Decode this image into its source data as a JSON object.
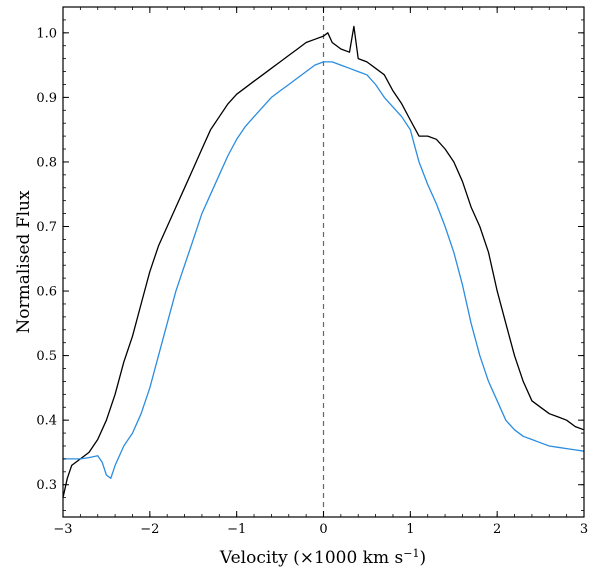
{
  "chart_data": {
    "type": "line",
    "xlabel": "Velocity (×1000 km s",
    "xlabel_sup": "−1",
    "xlabel_close": ")",
    "ylabel": "Normalised Flux",
    "xlim": [
      -3,
      3
    ],
    "ylim": [
      0.25,
      1.04
    ],
    "x_ticks": [
      -3,
      -2,
      -1,
      0,
      1,
      2,
      3
    ],
    "x_tick_labels": [
      "−3",
      "−2",
      "−1",
      "0",
      "1",
      "2",
      "3"
    ],
    "y_ticks": [
      0.3,
      0.4,
      0.5,
      0.6,
      0.7,
      0.8,
      0.9,
      1.0
    ],
    "y_tick_labels": [
      "0.3",
      "0.4",
      "0.5",
      "0.6",
      "0.7",
      "0.8",
      "0.9",
      "1.0"
    ],
    "grid": false,
    "reference_line": {
      "x": 0,
      "style": "dashed",
      "color": "#666666"
    },
    "series": [
      {
        "color": "#000000",
        "points": [
          [
            -3.0,
            0.28
          ],
          [
            -2.95,
            0.31
          ],
          [
            -2.9,
            0.33
          ],
          [
            -2.8,
            0.34
          ],
          [
            -2.7,
            0.35
          ],
          [
            -2.6,
            0.37
          ],
          [
            -2.5,
            0.4
          ],
          [
            -2.4,
            0.44
          ],
          [
            -2.3,
            0.49
          ],
          [
            -2.2,
            0.53
          ],
          [
            -2.1,
            0.58
          ],
          [
            -2.0,
            0.63
          ],
          [
            -1.9,
            0.67
          ],
          [
            -1.8,
            0.7
          ],
          [
            -1.7,
            0.73
          ],
          [
            -1.6,
            0.76
          ],
          [
            -1.5,
            0.79
          ],
          [
            -1.4,
            0.82
          ],
          [
            -1.3,
            0.85
          ],
          [
            -1.2,
            0.87
          ],
          [
            -1.1,
            0.89
          ],
          [
            -1.0,
            0.905
          ],
          [
            -0.9,
            0.915
          ],
          [
            -0.8,
            0.925
          ],
          [
            -0.7,
            0.935
          ],
          [
            -0.6,
            0.945
          ],
          [
            -0.5,
            0.955
          ],
          [
            -0.4,
            0.965
          ],
          [
            -0.3,
            0.975
          ],
          [
            -0.2,
            0.985
          ],
          [
            -0.1,
            0.99
          ],
          [
            0.0,
            0.995
          ],
          [
            0.05,
            1.0
          ],
          [
            0.1,
            0.985
          ],
          [
            0.2,
            0.975
          ],
          [
            0.3,
            0.97
          ],
          [
            0.35,
            1.01
          ],
          [
            0.4,
            0.96
          ],
          [
            0.5,
            0.955
          ],
          [
            0.6,
            0.945
          ],
          [
            0.7,
            0.935
          ],
          [
            0.8,
            0.91
          ],
          [
            0.9,
            0.89
          ],
          [
            1.0,
            0.865
          ],
          [
            1.1,
            0.84
          ],
          [
            1.2,
            0.84
          ],
          [
            1.3,
            0.835
          ],
          [
            1.4,
            0.82
          ],
          [
            1.5,
            0.8
          ],
          [
            1.6,
            0.77
          ],
          [
            1.7,
            0.73
          ],
          [
            1.8,
            0.7
          ],
          [
            1.9,
            0.66
          ],
          [
            2.0,
            0.6
          ],
          [
            2.1,
            0.55
          ],
          [
            2.2,
            0.5
          ],
          [
            2.3,
            0.46
          ],
          [
            2.4,
            0.43
          ],
          [
            2.5,
            0.42
          ],
          [
            2.6,
            0.41
          ],
          [
            2.7,
            0.405
          ],
          [
            2.8,
            0.4
          ],
          [
            2.9,
            0.39
          ],
          [
            3.0,
            0.385
          ]
        ]
      },
      {
        "color": "#2b8de0",
        "points": [
          [
            -3.0,
            0.34
          ],
          [
            -2.9,
            0.34
          ],
          [
            -2.8,
            0.34
          ],
          [
            -2.7,
            0.342
          ],
          [
            -2.6,
            0.345
          ],
          [
            -2.55,
            0.335
          ],
          [
            -2.5,
            0.315
          ],
          [
            -2.45,
            0.31
          ],
          [
            -2.4,
            0.33
          ],
          [
            -2.3,
            0.36
          ],
          [
            -2.2,
            0.38
          ],
          [
            -2.1,
            0.41
          ],
          [
            -2.0,
            0.45
          ],
          [
            -1.9,
            0.5
          ],
          [
            -1.8,
            0.55
          ],
          [
            -1.7,
            0.6
          ],
          [
            -1.6,
            0.64
          ],
          [
            -1.5,
            0.68
          ],
          [
            -1.4,
            0.72
          ],
          [
            -1.3,
            0.75
          ],
          [
            -1.2,
            0.78
          ],
          [
            -1.1,
            0.81
          ],
          [
            -1.0,
            0.835
          ],
          [
            -0.9,
            0.855
          ],
          [
            -0.8,
            0.87
          ],
          [
            -0.7,
            0.885
          ],
          [
            -0.6,
            0.9
          ],
          [
            -0.5,
            0.91
          ],
          [
            -0.4,
            0.92
          ],
          [
            -0.3,
            0.93
          ],
          [
            -0.2,
            0.94
          ],
          [
            -0.1,
            0.95
          ],
          [
            0.0,
            0.955
          ],
          [
            0.1,
            0.955
          ],
          [
            0.2,
            0.95
          ],
          [
            0.3,
            0.945
          ],
          [
            0.4,
            0.94
          ],
          [
            0.5,
            0.935
          ],
          [
            0.6,
            0.92
          ],
          [
            0.7,
            0.9
          ],
          [
            0.8,
            0.885
          ],
          [
            0.9,
            0.87
          ],
          [
            1.0,
            0.85
          ],
          [
            1.1,
            0.8
          ],
          [
            1.2,
            0.765
          ],
          [
            1.3,
            0.735
          ],
          [
            1.4,
            0.7
          ],
          [
            1.5,
            0.66
          ],
          [
            1.6,
            0.61
          ],
          [
            1.7,
            0.55
          ],
          [
            1.8,
            0.5
          ],
          [
            1.9,
            0.46
          ],
          [
            2.0,
            0.43
          ],
          [
            2.1,
            0.4
          ],
          [
            2.2,
            0.385
          ],
          [
            2.3,
            0.375
          ],
          [
            2.4,
            0.37
          ],
          [
            2.5,
            0.365
          ],
          [
            2.6,
            0.36
          ],
          [
            2.7,
            0.358
          ],
          [
            2.8,
            0.356
          ],
          [
            2.9,
            0.354
          ],
          [
            3.0,
            0.352
          ]
        ]
      }
    ]
  }
}
